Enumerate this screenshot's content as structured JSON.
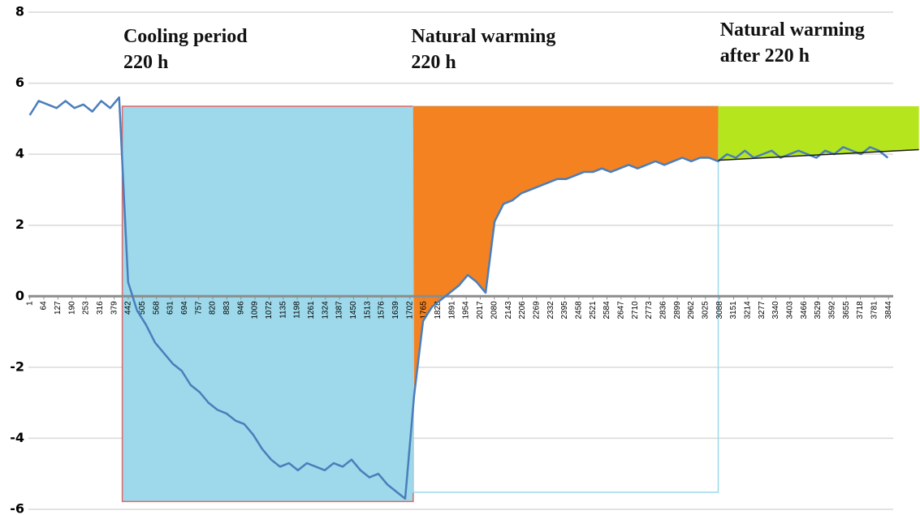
{
  "chart_data": {
    "type": "line",
    "annotations": [
      {
        "lines": [
          "Cooling period",
          "220 h"
        ],
        "x": 420
      },
      {
        "lines": [
          "Natural warming",
          "220 h"
        ],
        "x": 1708
      },
      {
        "lines": [
          "Natural warming",
          "after 220 h"
        ],
        "x": 3090
      }
    ],
    "xlim": [
      -5,
      3865
    ],
    "ylim": [
      -6,
      8
    ],
    "xticks": [
      1,
      64,
      127,
      190,
      253,
      316,
      379,
      442,
      505,
      568,
      631,
      694,
      757,
      820,
      883,
      946,
      1009,
      1072,
      1135,
      1198,
      1261,
      1324,
      1387,
      1450,
      1513,
      1576,
      1639,
      1702,
      1765,
      1828,
      1891,
      1954,
      2017,
      2080,
      2143,
      2206,
      2269,
      2332,
      2395,
      2458,
      2521,
      2584,
      2647,
      2710,
      2773,
      2836,
      2899,
      2962,
      3025,
      3088,
      3151,
      3214,
      3277,
      3340,
      3403,
      3466,
      3529,
      3592,
      3655,
      3718,
      3781,
      3844
    ],
    "yticks": [
      -6,
      -4,
      -2,
      0,
      2,
      4,
      6,
      8
    ],
    "grid": true,
    "regions": [
      {
        "x": [
          415,
          1717
        ],
        "y": [
          -5.78,
          5.35
        ],
        "color": "#9dd9ea",
        "edge": "#e06666"
      },
      {
        "x": [
          1717,
          3082
        ],
        "y": [
          -5.52,
          5.35
        ],
        "color": "none",
        "edge": "#9dd9ea"
      },
      {
        "x": [
          1717,
          3082
        ],
        "top": 5.35,
        "color": "#f58220",
        "fill": "above-series"
      },
      {
        "x": [
          3082,
          3980
        ],
        "top": 5.35,
        "color": "#b5e61d",
        "fill": "above-trend"
      }
    ],
    "trend": {
      "x": [
        3082,
        3980
      ],
      "values": [
        3.83,
        4.13
      ],
      "color": "#1a1a1a"
    },
    "x": [
      1,
      41,
      81,
      121,
      161,
      201,
      241,
      281,
      321,
      361,
      401,
      441,
      481,
      521,
      561,
      601,
      641,
      681,
      721,
      761,
      801,
      841,
      881,
      921,
      961,
      1001,
      1041,
      1081,
      1121,
      1161,
      1201,
      1241,
      1281,
      1321,
      1361,
      1401,
      1441,
      1481,
      1521,
      1561,
      1601,
      1641,
      1681,
      1721,
      1761,
      1801,
      1841,
      1881,
      1921,
      1961,
      2001,
      2041,
      2081,
      2121,
      2161,
      2201,
      2241,
      2281,
      2321,
      2361,
      2401,
      2441,
      2481,
      2521,
      2561,
      2601,
      2641,
      2681,
      2721,
      2761,
      2801,
      2841,
      2881,
      2921,
      2961,
      3001,
      3041,
      3081,
      3121,
      3161,
      3201,
      3241,
      3281,
      3321,
      3361,
      3401,
      3441,
      3481,
      3521,
      3561,
      3601,
      3641,
      3681,
      3721,
      3761,
      3801,
      3841
    ],
    "series": [
      {
        "color": "#4a7ebb",
        "values": [
          5.1,
          5.5,
          5.4,
          5.3,
          5.5,
          5.3,
          5.4,
          5.2,
          5.5,
          5.3,
          5.6,
          0.4,
          -0.4,
          -0.8,
          -1.3,
          -1.6,
          -1.9,
          -2.1,
          -2.5,
          -2.7,
          -3.0,
          -3.2,
          -3.3,
          -3.5,
          -3.6,
          -3.9,
          -4.3,
          -4.6,
          -4.8,
          -4.7,
          -4.9,
          -4.7,
          -4.8,
          -4.9,
          -4.7,
          -4.8,
          -4.6,
          -4.9,
          -5.1,
          -5.0,
          -5.3,
          -5.5,
          -5.7,
          -2.8,
          -0.7,
          -0.3,
          -0.1,
          0.1,
          0.3,
          0.6,
          0.4,
          0.1,
          2.1,
          2.6,
          2.7,
          2.9,
          3.0,
          3.1,
          3.2,
          3.3,
          3.3,
          3.4,
          3.5,
          3.5,
          3.6,
          3.5,
          3.6,
          3.7,
          3.6,
          3.7,
          3.8,
          3.7,
          3.8,
          3.9,
          3.8,
          3.9,
          3.9,
          3.8,
          4.0,
          3.9,
          4.1,
          3.9,
          4.0,
          4.1,
          3.9,
          4.0,
          4.1,
          4.0,
          3.9,
          4.1,
          4.0,
          4.2,
          4.1,
          4.0,
          4.2,
          4.1,
          3.9
        ]
      }
    ]
  }
}
